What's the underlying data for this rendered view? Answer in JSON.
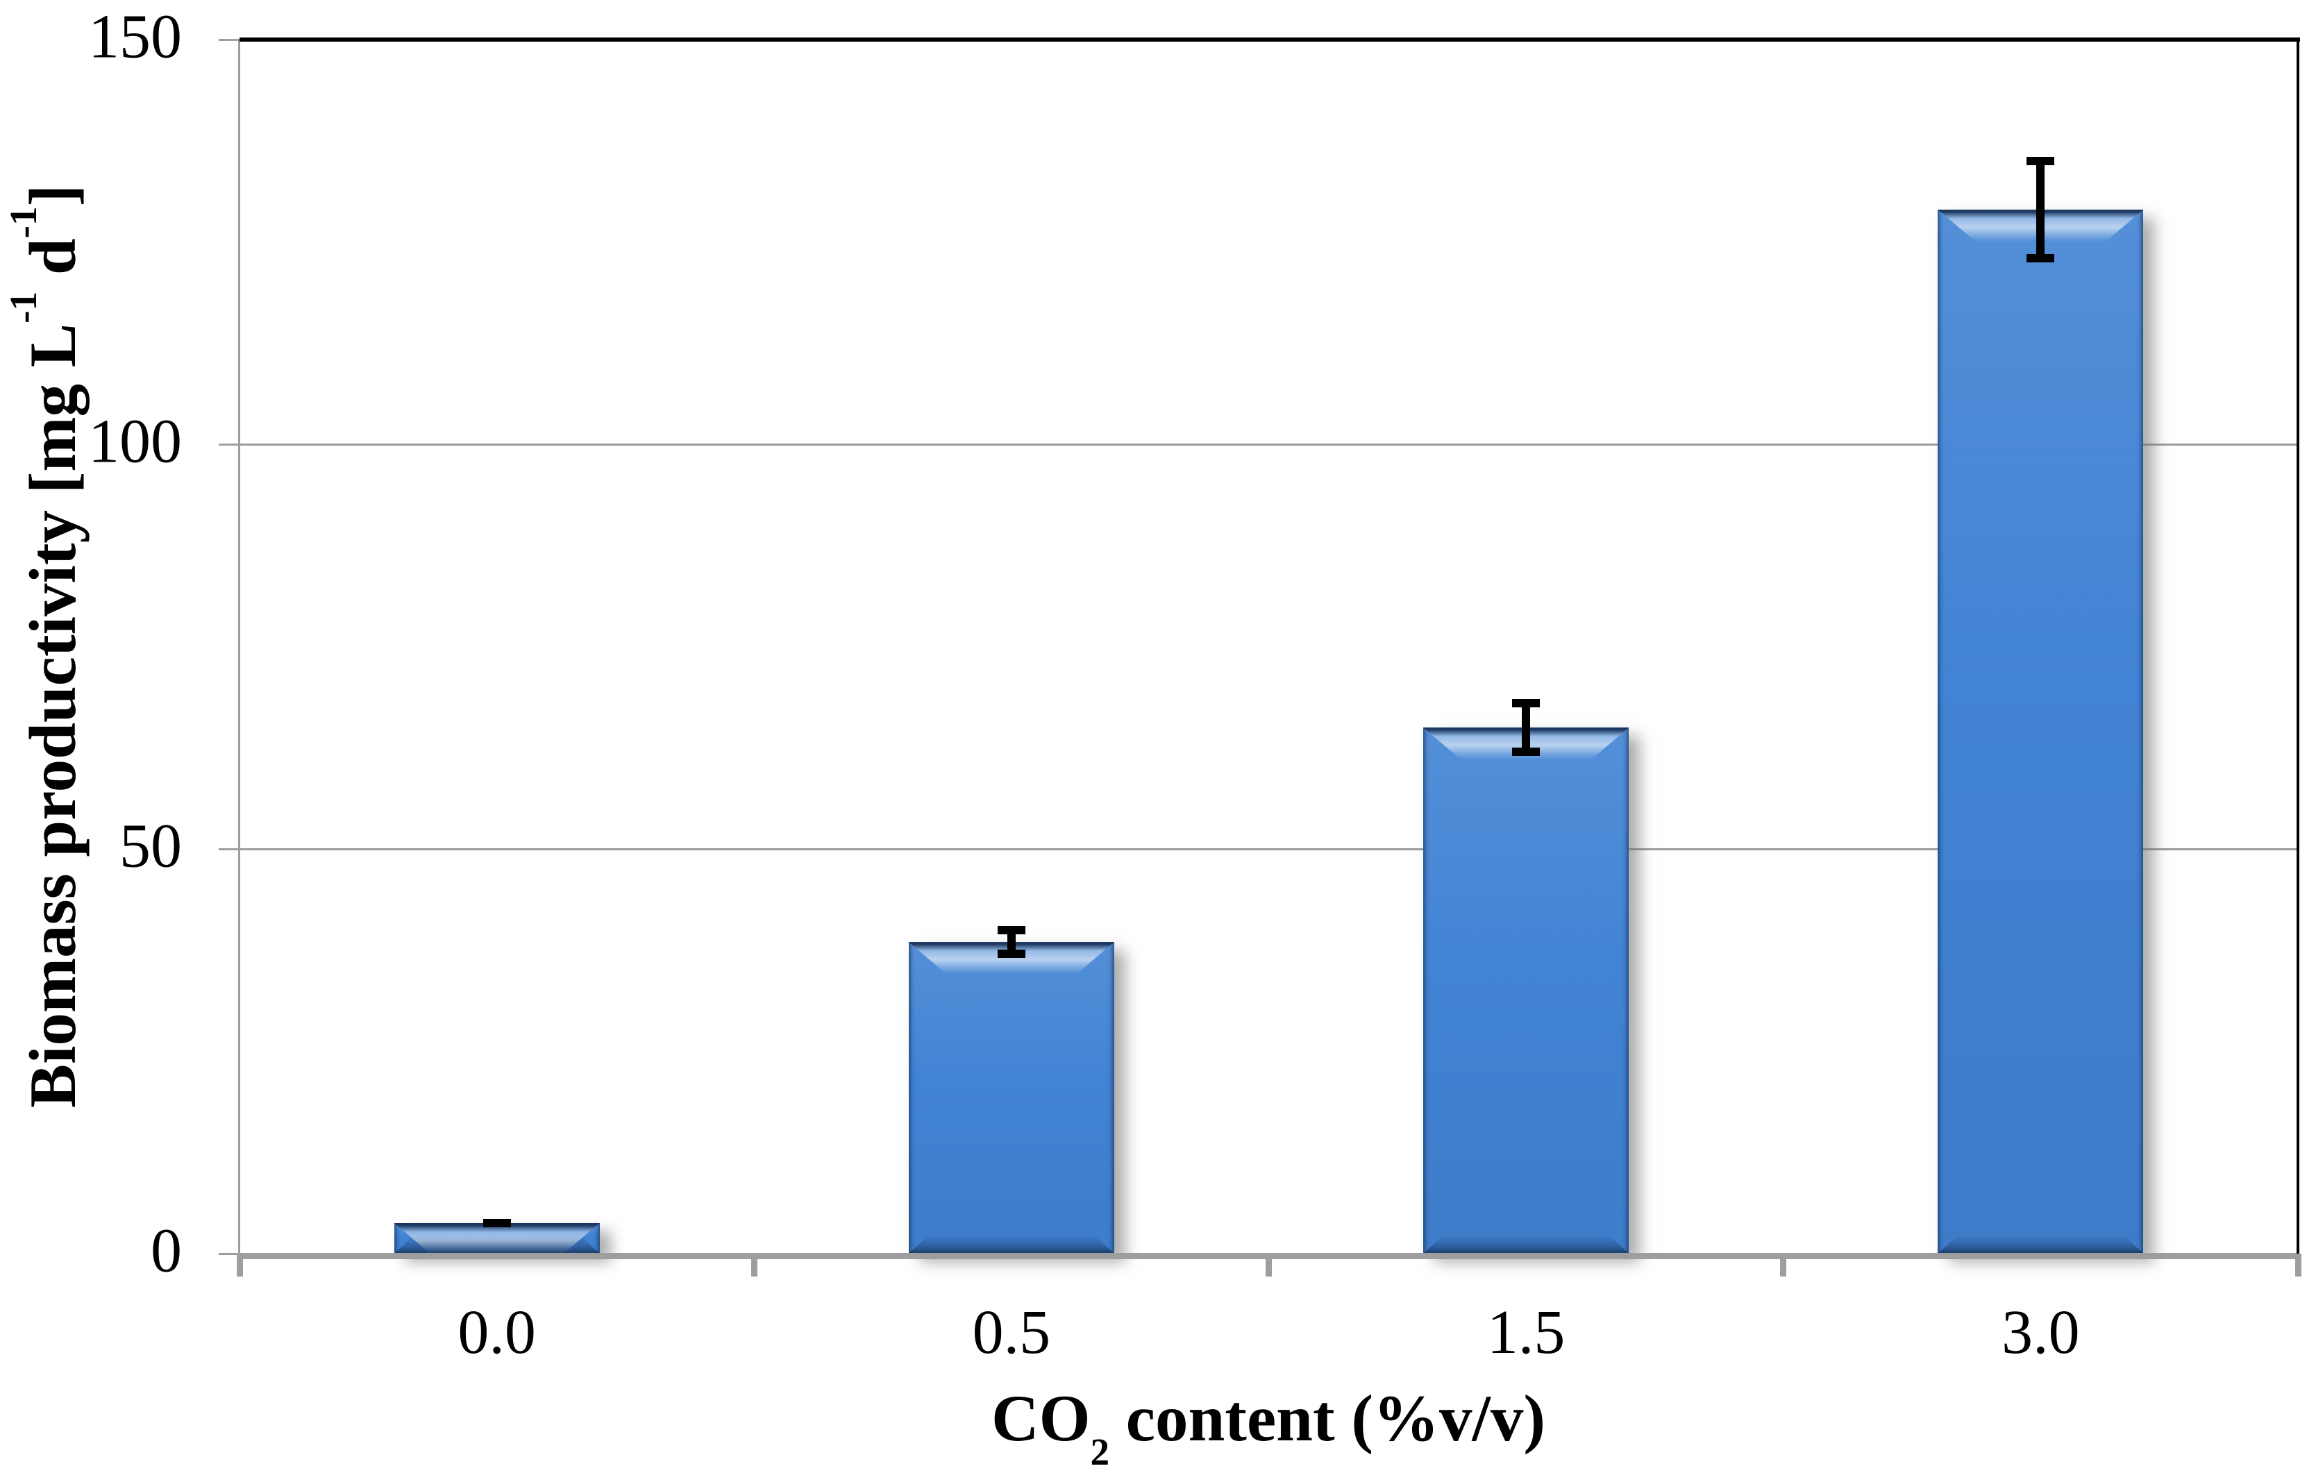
{
  "chart_data": {
    "type": "bar",
    "title": "",
    "categories": [
      "0.0",
      "0.5",
      "1.5",
      "3.0"
    ],
    "values": [
      3.8,
      38.5,
      65,
      129
    ],
    "errors": [
      0.5,
      2.0,
      3.5,
      6.5
    ],
    "xlabel": "CO2 content (%v/v)",
    "ylabel": "Biomass productivity [mg L-1 d-1]",
    "xlabel_parts": {
      "pre": "CO",
      "sub": "2",
      "post": " content (%v/v)"
    },
    "ylabel_parts": {
      "p1": "Biomass productivity [mg L",
      "sup1": "-1",
      "p2": " d",
      "sup2": "-1",
      "p3": "]"
    },
    "yticks": [
      0,
      50,
      100,
      150
    ],
    "ylim": [
      0,
      150
    ],
    "grid": true,
    "legend_position": "none",
    "colors": {
      "bar": "#4183d4",
      "bar_highlight": "#a9d6fa",
      "bar_edge": "#2d5586",
      "axis": "#9e9e9e",
      "grid": "#9c9c9c",
      "frame": "#000000",
      "error": "#000000",
      "background": "#ffffff"
    }
  }
}
